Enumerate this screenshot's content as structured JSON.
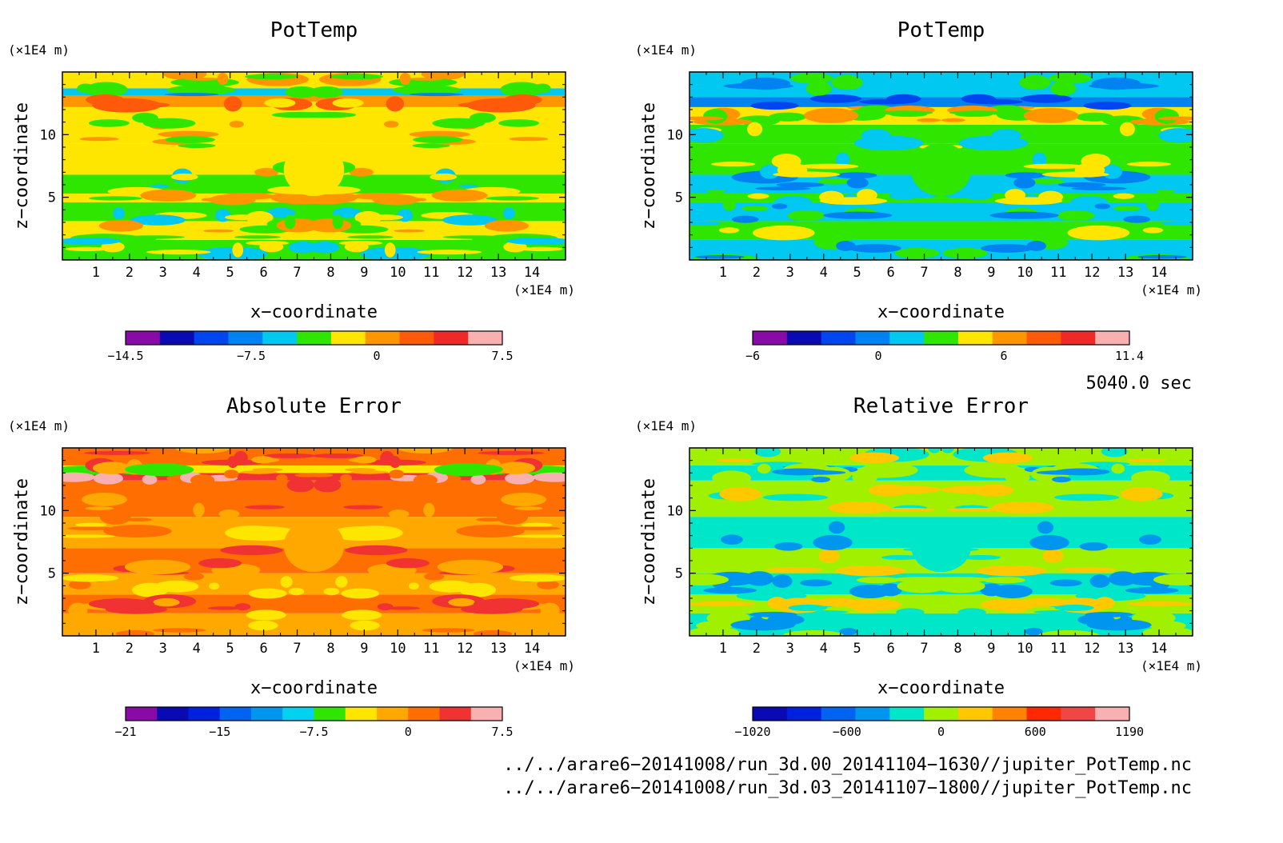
{
  "chart_data": [
    {
      "type": "heatmap",
      "title": "PotTemp",
      "xlabel": "x−coordinate",
      "ylabel": "z−coordinate",
      "x_unit": "(×1E4 m)",
      "z_unit": "(×1E4 m)",
      "xlim": [
        0,
        15
      ],
      "ylim": [
        0,
        15
      ],
      "x_ticks": [
        "1",
        "2",
        "3",
        "4",
        "5",
        "6",
        "7",
        "8",
        "9",
        "10",
        "11",
        "12",
        "13",
        "14"
      ],
      "y_ticks": [
        "5",
        "10"
      ],
      "colorbar": {
        "colors": [
          "#8a0aa8",
          "#0a0ab4",
          "#0046f0",
          "#0082f0",
          "#00c8f0",
          "#2ee600",
          "#ffe600",
          "#ff9600",
          "#ff5a0a",
          "#f02828",
          "#f8b0b0"
        ],
        "tick_labels": [
          "−14.5",
          "−7.5",
          "0",
          "7.5"
        ]
      },
      "bands": [
        {
          "z": [
            0,
            1.6
          ],
          "level": 5
        },
        {
          "z": [
            1.6,
            3.1
          ],
          "level": 6
        },
        {
          "z": [
            3.1,
            4.6
          ],
          "level": 5
        },
        {
          "z": [
            4.6,
            5.3
          ],
          "level": 6
        },
        {
          "z": [
            5.3,
            6.8
          ],
          "level": 5
        },
        {
          "z": [
            6.8,
            9.3
          ],
          "level": 6
        },
        {
          "z": [
            9.3,
            12.2
          ],
          "level": 6
        },
        {
          "z": [
            12.2,
            13.1
          ],
          "level": 7
        },
        {
          "z": [
            13.1,
            13.7
          ],
          "level": 4
        },
        {
          "z": [
            13.7,
            15
          ],
          "level": 6
        }
      ]
    },
    {
      "type": "heatmap",
      "title": "PotTemp",
      "xlabel": "x−coordinate",
      "ylabel": "z−coordinate",
      "x_unit": "(×1E4 m)",
      "z_unit": "(×1E4 m)",
      "xlim": [
        0,
        15
      ],
      "ylim": [
        0,
        15
      ],
      "x_ticks": [
        "1",
        "2",
        "3",
        "4",
        "5",
        "6",
        "7",
        "8",
        "9",
        "10",
        "11",
        "12",
        "13",
        "14"
      ],
      "y_ticks": [
        "5",
        "10"
      ],
      "colorbar": {
        "colors": [
          "#8a0aa8",
          "#0a0ab4",
          "#0046f0",
          "#0082f0",
          "#00c8f0",
          "#2ee600",
          "#ffe600",
          "#ff9600",
          "#ff5a0a",
          "#f02828",
          "#f8b0b0"
        ],
        "tick_labels": [
          "−6",
          "0",
          "6",
          "11.4"
        ]
      },
      "bands": [
        {
          "z": [
            0,
            1.6
          ],
          "level": 4
        },
        {
          "z": [
            1.6,
            3.1
          ],
          "level": 5
        },
        {
          "z": [
            3.1,
            4.6
          ],
          "level": 4
        },
        {
          "z": [
            4.6,
            5.3
          ],
          "level": 5
        },
        {
          "z": [
            5.3,
            6.8
          ],
          "level": 4
        },
        {
          "z": [
            6.8,
            9.3
          ],
          "level": 5
        },
        {
          "z": [
            9.3,
            10.8
          ],
          "level": 5
        },
        {
          "z": [
            10.8,
            12.2
          ],
          "level": 6
        },
        {
          "z": [
            12.2,
            13.0
          ],
          "level": 3
        },
        {
          "z": [
            13.0,
            15
          ],
          "level": 4
        }
      ]
    },
    {
      "type": "heatmap",
      "title": "Absolute Error",
      "xlabel": "x−coordinate",
      "ylabel": "z−coordinate",
      "x_unit": "(×1E4 m)",
      "z_unit": "(×1E4 m)",
      "xlim": [
        0,
        15
      ],
      "ylim": [
        0,
        15
      ],
      "x_ticks": [
        "1",
        "2",
        "3",
        "4",
        "5",
        "6",
        "7",
        "8",
        "9",
        "10",
        "11",
        "12",
        "13",
        "14"
      ],
      "y_ticks": [
        "5",
        "10"
      ],
      "colorbar": {
        "colors": [
          "#8a0aa8",
          "#0a0ab4",
          "#0020e0",
          "#0064f0",
          "#0096f0",
          "#00d2f0",
          "#2ee600",
          "#ffe600",
          "#ffa800",
          "#ff6e00",
          "#f03232",
          "#f8b0b0"
        ],
        "tick_labels": [
          "−21",
          "−15",
          "−7.5",
          "0",
          "7.5"
        ]
      },
      "bands": [
        {
          "z": [
            0,
            1.8
          ],
          "level": 8
        },
        {
          "z": [
            1.8,
            3.3
          ],
          "level": 9
        },
        {
          "z": [
            3.3,
            5.0
          ],
          "level": 8
        },
        {
          "z": [
            5.0,
            7.0
          ],
          "level": 9
        },
        {
          "z": [
            7.0,
            9.5
          ],
          "level": 8
        },
        {
          "z": [
            9.5,
            12.4
          ],
          "level": 9
        },
        {
          "z": [
            12.4,
            13.0
          ],
          "level": 10
        },
        {
          "z": [
            13.0,
            13.6
          ],
          "level": 7
        },
        {
          "z": [
            13.6,
            15
          ],
          "level": 9
        }
      ]
    },
    {
      "type": "heatmap",
      "title": "Relative Error",
      "xlabel": "x−coordinate",
      "ylabel": "z−coordinate",
      "x_unit": "(×1E4 m)",
      "z_unit": "(×1E4 m)",
      "xlim": [
        0,
        15
      ],
      "ylim": [
        0,
        15
      ],
      "x_ticks": [
        "1",
        "2",
        "3",
        "4",
        "5",
        "6",
        "7",
        "8",
        "9",
        "10",
        "11",
        "12",
        "13",
        "14"
      ],
      "y_ticks": [
        "5",
        "10"
      ],
      "colorbar": {
        "colors": [
          "#0a0ab4",
          "#0020e0",
          "#0064f0",
          "#0096f0",
          "#00e6c8",
          "#a0f000",
          "#ffc800",
          "#ff8200",
          "#ff2800",
          "#f04646",
          "#f8b0b0"
        ],
        "tick_labels": [
          "−1020",
          "−600",
          "0",
          "600",
          "1190"
        ]
      },
      "bands": [
        {
          "z": [
            0,
            1.8
          ],
          "level": 4
        },
        {
          "z": [
            1.8,
            3.3
          ],
          "level": 5
        },
        {
          "z": [
            3.3,
            5.0
          ],
          "level": 4
        },
        {
          "z": [
            5.0,
            7.0
          ],
          "level": 5
        },
        {
          "z": [
            7.0,
            9.5
          ],
          "level": 4
        },
        {
          "z": [
            9.5,
            12.4
          ],
          "level": 5
        },
        {
          "z": [
            12.4,
            13.6
          ],
          "level": 4
        },
        {
          "z": [
            13.6,
            15
          ],
          "level": 5
        }
      ]
    }
  ],
  "time_label": "5040.0 sec",
  "footer": {
    "line1": "../../arare6−20141008/run_3d.00_20141104−1630//jupiter_PotTemp.nc",
    "line2": "../../arare6−20141008/run_3d.03_20141107−1800//jupiter_PotTemp.nc"
  }
}
